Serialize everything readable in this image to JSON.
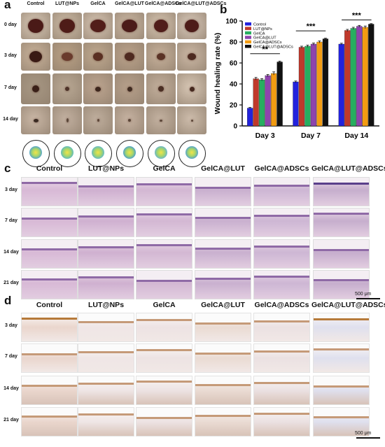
{
  "panel_a": {
    "letter": "a",
    "columns": [
      "Control",
      "LUT@NPs",
      "GelCA",
      "GelCA@LUT",
      "GelCA@ADSCs",
      "GelCA@LUT@ADSCs"
    ],
    "rows": [
      "0 day",
      "3 day",
      "7 day",
      "14 day"
    ]
  },
  "panel_b": {
    "letter": "b"
  },
  "panel_c": {
    "letter": "c",
    "columns": [
      "Control",
      "LUT@NPs",
      "GelCA",
      "GelCA@LUT",
      "GelCA@ADSCs",
      "GelCA@LUT@ADSCs"
    ],
    "rows": [
      "3 day",
      "7 day",
      "14 day",
      "21 day"
    ],
    "scale": "500 μm"
  },
  "panel_d": {
    "letter": "d",
    "columns": [
      "Control",
      "LUT@NPs",
      "GelCA",
      "GelCA@LUT",
      "GelCA@ADSCs",
      "GelCA@LUT@ADSCs"
    ],
    "rows": [
      "3 day",
      "7 day",
      "14 day",
      "21 day"
    ],
    "scale": "500 μm"
  },
  "colors": {
    "Control": "#2222dd",
    "LUT@NPs": "#c0392b",
    "GelCA": "#27ae60",
    "GelCA@LUT": "#8e44ad",
    "GelCA@ADSCs": "#f39c12",
    "GelCA@LUT@ADSCs": "#111111"
  },
  "chart_data": {
    "type": "bar",
    "title": "",
    "xlabel": "",
    "ylabel": "Wound healing rate (%)",
    "ylim": [
      0,
      100
    ],
    "yticks": [
      0,
      20,
      40,
      60,
      80,
      100
    ],
    "categories": [
      "Day 3",
      "Day 7",
      "Day 14"
    ],
    "legend_position": "top-left",
    "series": [
      {
        "name": "Control",
        "values": [
          17,
          42,
          78
        ],
        "errors": [
          0.6,
          0.8,
          0.8
        ]
      },
      {
        "name": "LUT@NPs",
        "values": [
          45,
          75,
          91
        ],
        "errors": [
          1.2,
          1.0,
          1.0
        ]
      },
      {
        "name": "GelCA",
        "values": [
          44,
          76,
          93
        ],
        "errors": [
          1.0,
          1.0,
          1.0
        ]
      },
      {
        "name": "GelCA@LUT",
        "values": [
          48,
          78,
          95
        ],
        "errors": [
          1.0,
          1.0,
          0.8
        ]
      },
      {
        "name": "GelCA@ADSCs",
        "values": [
          50,
          80,
          94
        ],
        "errors": [
          1.5,
          1.0,
          1.2
        ]
      },
      {
        "name": "GelCA@LUT@ADSCs",
        "values": [
          61,
          83,
          97
        ],
        "errors": [
          0.8,
          0.6,
          0.5
        ]
      }
    ],
    "significance": [
      "**",
      "***",
      "***"
    ]
  }
}
